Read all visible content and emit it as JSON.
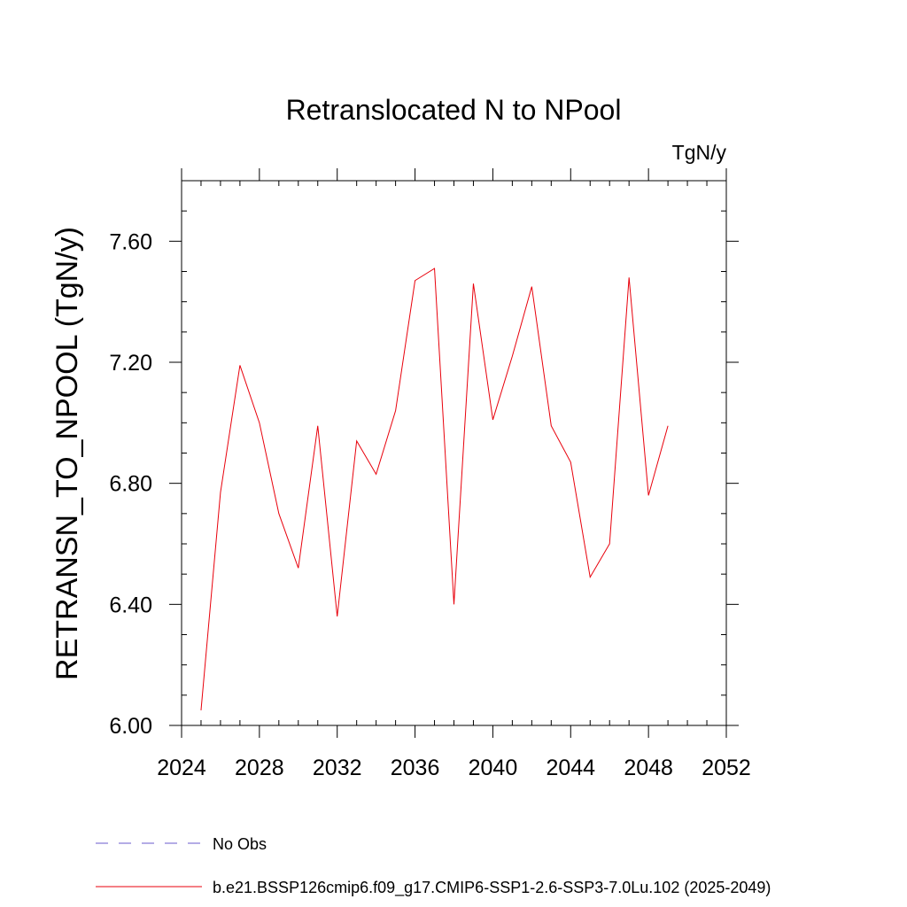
{
  "chart_data": {
    "type": "line",
    "title": "Retranslocated N to NPool",
    "units_label": "TgN/y",
    "ylabel": "RETRANSN_TO_NPOOL  (TgN/y)",
    "xlabel": "",
    "xlim": [
      2024,
      2052
    ],
    "ylim": [
      6.0,
      7.8
    ],
    "x_ticks": [
      2024,
      2028,
      2032,
      2036,
      2040,
      2044,
      2048,
      2052
    ],
    "x_tick_labels": [
      "2024",
      "2028",
      "2032",
      "2036",
      "2040",
      "2044",
      "2048",
      "2052"
    ],
    "y_ticks": [
      6.0,
      6.4,
      6.8,
      7.2,
      7.6
    ],
    "y_tick_labels": [
      "6.00",
      "6.40",
      "6.80",
      "7.20",
      "7.60"
    ],
    "x_minor_step": 1,
    "y_minor_step": 0.1,
    "grid": false,
    "legend_position": "bottom",
    "series": [
      {
        "name": "b.e21.BSSP126cmip6.f09_g17.CMIP6-SSP1-2.6-SSP3-7.0Lu.102 (2025-2049)",
        "color": "#e8000b",
        "style": "solid",
        "x": [
          2025,
          2026,
          2027,
          2028,
          2029,
          2030,
          2031,
          2032,
          2033,
          2034,
          2035,
          2036,
          2037,
          2038,
          2039,
          2040,
          2041,
          2042,
          2043,
          2044,
          2045,
          2046,
          2047,
          2048,
          2049
        ],
        "values": [
          6.05,
          6.77,
          7.19,
          7.0,
          6.7,
          6.52,
          6.99,
          6.36,
          6.94,
          6.83,
          7.04,
          7.47,
          7.51,
          6.4,
          7.46,
          7.01,
          7.22,
          7.45,
          6.99,
          6.87,
          6.49,
          6.6,
          7.48,
          6.76,
          6.99
        ]
      }
    ],
    "legend": [
      {
        "label": "No Obs",
        "color": "#6a5acd",
        "style": "dashed"
      },
      {
        "label": "b.e21.BSSP126cmip6.f09_g17.CMIP6-SSP1-2.6-SSP3-7.0Lu.102 (2025-2049)",
        "color": "#e8000b",
        "style": "solid"
      }
    ]
  }
}
